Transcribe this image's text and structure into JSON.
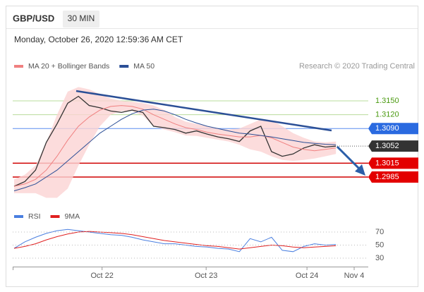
{
  "header": {
    "symbol": "GBP/USD",
    "timeframe": "30 MIN",
    "timestamp": "Monday, October 26, 2020 12:59:36 AM CET",
    "credit": "Research © 2020 Trading Central"
  },
  "chart_data": [
    {
      "type": "line",
      "x": [
        0,
        1,
        2,
        3,
        4,
        5,
        6,
        7,
        8,
        9,
        10,
        11,
        12,
        13,
        14,
        15,
        16,
        17,
        18,
        19,
        20,
        21,
        22,
        23,
        24,
        25,
        26,
        27,
        28,
        29,
        30
      ],
      "xlim": [
        0,
        34
      ],
      "ylim": [
        1.293,
        1.32
      ],
      "series": [
        {
          "color": "#333333",
          "values": [
            1.2965,
            1.2975,
            1.3,
            1.306,
            1.31,
            1.3145,
            1.316,
            1.314,
            1.3135,
            1.3128,
            1.3125,
            1.313,
            1.3125,
            1.3095,
            1.3092,
            1.3088,
            1.308,
            1.3085,
            1.3078,
            1.3072,
            1.3068,
            1.3062,
            1.3085,
            1.3095,
            1.304,
            1.303,
            1.3035,
            1.3048,
            1.3055,
            1.305,
            1.3052
          ]
        },
        {
          "name": "MA 20 + Bollinger Bands",
          "color": "#f08080",
          "band_color": "#fbd3d3",
          "values": [
            1.2965,
            1.297,
            1.298,
            1.3,
            1.303,
            1.3065,
            1.3095,
            1.3115,
            1.313,
            1.3138,
            1.314,
            1.3138,
            1.3132,
            1.312,
            1.311,
            1.31,
            1.3092,
            1.3088,
            1.3082,
            1.3078,
            1.3075,
            1.3072,
            1.3072,
            1.3075,
            1.307,
            1.306,
            1.305,
            1.3045,
            1.3042,
            1.3045,
            1.3048
          ],
          "upper": [
            1.298,
            1.299,
            1.301,
            1.306,
            1.312,
            1.317,
            1.318,
            1.3175,
            1.3165,
            1.3155,
            1.315,
            1.3148,
            1.3145,
            1.314,
            1.313,
            1.3115,
            1.3105,
            1.31,
            1.3095,
            1.309,
            1.3088,
            1.309,
            1.31,
            1.311,
            1.3108,
            1.3095,
            1.308,
            1.307,
            1.3062,
            1.306,
            1.3062
          ],
          "lower": [
            1.295,
            1.295,
            1.295,
            1.294,
            1.294,
            1.296,
            1.301,
            1.3055,
            1.3095,
            1.312,
            1.3128,
            1.3128,
            1.3118,
            1.3095,
            1.3088,
            1.3082,
            1.3075,
            1.3074,
            1.307,
            1.3066,
            1.3062,
            1.3055,
            1.3045,
            1.304,
            1.303,
            1.3022,
            1.302,
            1.3022,
            1.3025,
            1.303,
            1.3035
          ]
        },
        {
          "name": "MA 50",
          "color": "#2b4f96",
          "values": [
            1.2955,
            1.2962,
            1.297,
            1.2985,
            1.3,
            1.302,
            1.304,
            1.306,
            1.308,
            1.3095,
            1.311,
            1.3122,
            1.313,
            1.3132,
            1.3128,
            1.312,
            1.311,
            1.3102,
            1.3095,
            1.309,
            1.3085,
            1.308,
            1.3078,
            1.3075,
            1.3072,
            1.3068,
            1.3064,
            1.306,
            1.3058,
            1.3056,
            1.3055
          ]
        }
      ],
      "levels": [
        {
          "value": 1.315,
          "label": "1.3150",
          "kind": "text",
          "color": "#4a9a10",
          "line_color": "#b9dc9c"
        },
        {
          "value": 1.312,
          "label": "1.3120",
          "kind": "text",
          "color": "#4a9a10",
          "line_color": "#b9dc9c"
        },
        {
          "value": 1.309,
          "label": "1.3090",
          "kind": "badge",
          "color": "#2a6ae0",
          "line_color": "#5b8def"
        },
        {
          "value": 1.3052,
          "label": "1.3052",
          "kind": "current",
          "color": "#333333",
          "line_color": "#555555"
        },
        {
          "value": 1.3015,
          "label": "1.3015",
          "kind": "badge",
          "color": "#e30000",
          "line_color": "#d00000"
        },
        {
          "value": 1.2985,
          "label": "1.2985",
          "kind": "badge",
          "color": "#e30000",
          "line_color": "#d00000"
        }
      ]
    },
    {
      "type": "line",
      "x": [
        0,
        1,
        2,
        3,
        4,
        5,
        6,
        7,
        8,
        9,
        10,
        11,
        12,
        13,
        14,
        15,
        16,
        17,
        18,
        19,
        20,
        21,
        22,
        23,
        24,
        25,
        26,
        27,
        28,
        29,
        30
      ],
      "xlim": [
        0,
        34
      ],
      "ylim": [
        20,
        80
      ],
      "yticks": [
        70,
        50,
        30
      ],
      "xticks": [
        {
          "value": 8.2,
          "label": "Oct 22"
        },
        {
          "value": 17.9,
          "label": "Oct 23"
        },
        {
          "value": 27.3,
          "label": "Oct 24"
        },
        {
          "value": 31.7,
          "label": "Nov 4"
        }
      ],
      "series": [
        {
          "name": "RSI",
          "color": "#4a7fe0",
          "values": [
            45,
            55,
            62,
            68,
            72,
            74,
            72,
            70,
            68,
            66,
            65,
            62,
            58,
            55,
            52,
            52,
            50,
            48,
            47,
            45,
            44,
            40,
            60,
            55,
            62,
            42,
            40,
            48,
            52,
            50,
            51
          ]
        },
        {
          "name": "9MA",
          "color": "#e02020",
          "values": [
            45,
            48,
            52,
            58,
            63,
            67,
            70,
            71,
            70,
            69,
            68,
            66,
            63,
            60,
            57,
            55,
            53,
            51,
            49,
            48,
            46,
            44,
            46,
            48,
            50,
            49,
            47,
            46,
            47,
            48,
            49
          ]
        }
      ]
    }
  ]
}
